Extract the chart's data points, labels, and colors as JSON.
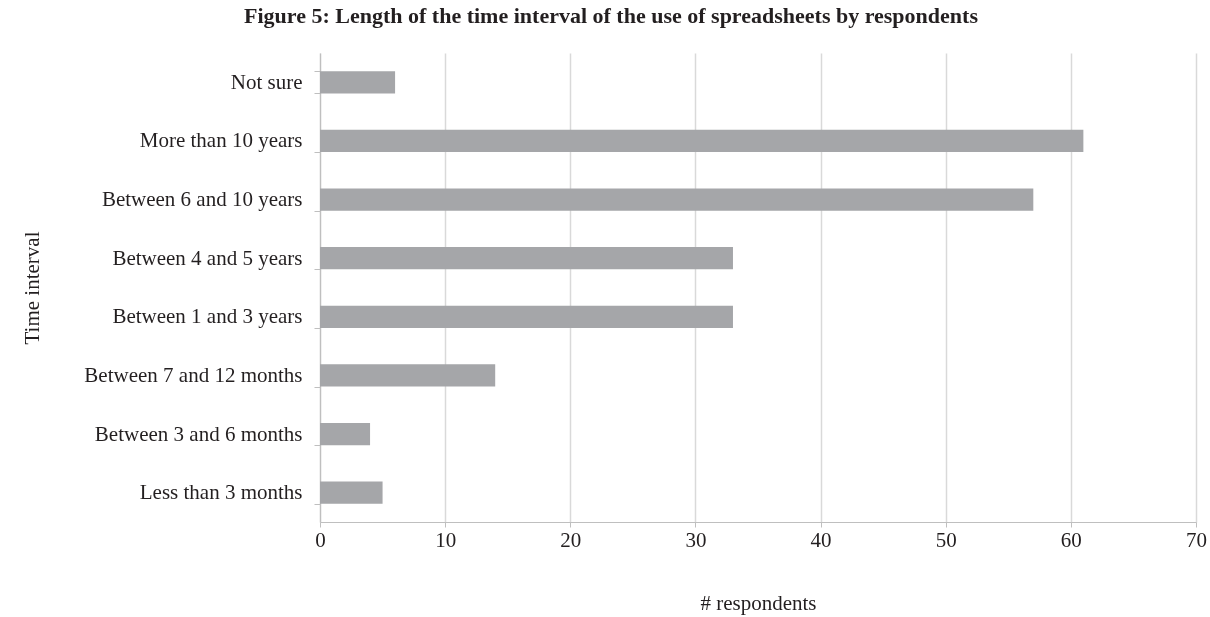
{
  "chart_data": {
    "type": "bar",
    "orientation": "horizontal",
    "title": "Figure 5: Length of the time interval of the use of spreadsheets by respondents",
    "xlabel": "# respondents",
    "ylabel": "Time interval",
    "categories": [
      "Not sure",
      "More than 10 years",
      "Between 6 and 10 years",
      "Between 4 and 5 years",
      "Between 1 and 3 years",
      "Between 7 and 12 months",
      "Between 3 and 6 months",
      "Less than 3 months"
    ],
    "values": [
      6,
      61,
      57,
      33,
      33,
      14,
      4,
      5
    ],
    "color": "#a5a6a9",
    "xlim": [
      0,
      70
    ],
    "xticks": [
      0,
      10,
      20,
      30,
      40,
      50,
      60,
      70
    ],
    "grid": "x"
  }
}
